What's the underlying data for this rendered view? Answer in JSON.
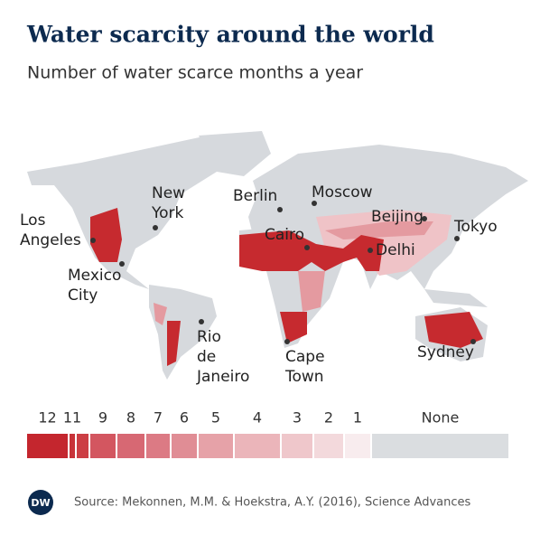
{
  "title": "Water scarcity around the world",
  "subtitle": "Number of water scarce months a year",
  "cities": [
    {
      "lines": [
        "Los",
        "Angeles"
      ]
    },
    {
      "lines": [
        "New",
        "York"
      ]
    },
    {
      "lines": [
        "Mexico",
        "City"
      ]
    },
    {
      "lines": [
        "Berlin"
      ]
    },
    {
      "lines": [
        "Moscow"
      ]
    },
    {
      "lines": [
        "Beijing"
      ]
    },
    {
      "lines": [
        "Tokyo"
      ]
    },
    {
      "lines": [
        "Cairo"
      ]
    },
    {
      "lines": [
        "Delhi"
      ]
    },
    {
      "lines": [
        "Rio",
        "de",
        "Janeiro"
      ]
    },
    {
      "lines": [
        "Cape",
        "Town"
      ]
    },
    {
      "lines": [
        "Sydney"
      ]
    }
  ],
  "legend": {
    "items": [
      {
        "label": "12",
        "color": "#c4262e"
      },
      {
        "label": "11",
        "color": "#c83339"
      },
      {
        "label": null,
        "color": "#cc3e44"
      },
      {
        "label": "9",
        "color": "#d35660"
      },
      {
        "label": "8",
        "color": "#d76873"
      },
      {
        "label": "7",
        "color": "#dc7a84"
      },
      {
        "label": "6",
        "color": "#e08d95"
      },
      {
        "label": "5",
        "color": "#e6a2a8"
      },
      {
        "label": "4",
        "color": "#ebb5ba"
      },
      {
        "label": "3",
        "color": "#efc7cb"
      },
      {
        "label": "2",
        "color": "#f3d9dc"
      },
      {
        "label": "1",
        "color": "#f8ecee"
      },
      {
        "label": "None",
        "color": "#dadde0"
      }
    ]
  },
  "source": "Source: Mekonnen, M.M. & Hoekstra, A.Y. (2016), Science Advances",
  "logo": "DW"
}
